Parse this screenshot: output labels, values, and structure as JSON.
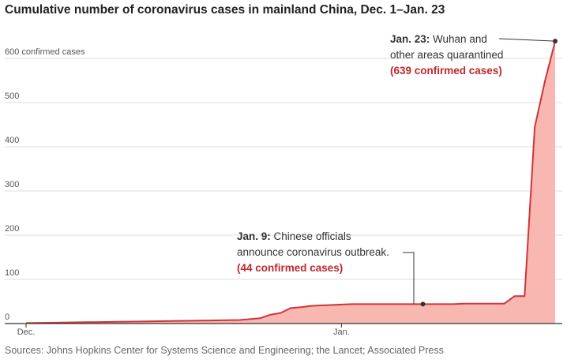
{
  "title": "Cumulative number of coronavirus cases in mainland China, Dec. 1–Jan. 23",
  "source": "Sources: Johns Hopkins Center for Systems Science and Engineering; the Lancet; Associated Press",
  "colors": {
    "line": "#d0343a",
    "area": "#f8b7b0",
    "grid": "#dddddd",
    "annotation_red": "#c0272d"
  },
  "chart_data": {
    "type": "area",
    "title": "Cumulative number of coronavirus cases in mainland China, Dec. 1–Jan. 23",
    "ylabel": "",
    "ylim": [
      0,
      639
    ],
    "y_ticks": [
      {
        "value": 0,
        "label": "0"
      },
      {
        "value": 100,
        "label": "100"
      },
      {
        "value": 200,
        "label": "200"
      },
      {
        "value": 300,
        "label": "300"
      },
      {
        "value": 400,
        "label": "400"
      },
      {
        "value": 500,
        "label": "500"
      },
      {
        "value": 600,
        "label": "600 confirmed cases"
      }
    ],
    "x_ticks": [
      {
        "day": 0,
        "label": "Dec."
      },
      {
        "day": 31,
        "label": "Jan."
      }
    ],
    "grid": true,
    "series": [
      {
        "values": [
          [
            0,
            1
          ],
          [
            3,
            2
          ],
          [
            6,
            3
          ],
          [
            9,
            4
          ],
          [
            12,
            5
          ],
          [
            15,
            6
          ],
          [
            18,
            7
          ],
          [
            21,
            8
          ],
          [
            23,
            12
          ],
          [
            24,
            20
          ],
          [
            25,
            24
          ],
          [
            26,
            35
          ],
          [
            27,
            37
          ],
          [
            28,
            40
          ],
          [
            29,
            41
          ],
          [
            30,
            42
          ],
          [
            31,
            43
          ],
          [
            32,
            44
          ],
          [
            33,
            44
          ],
          [
            34,
            44
          ],
          [
            35,
            44
          ],
          [
            36,
            44
          ],
          [
            37,
            44
          ],
          [
            38,
            44
          ],
          [
            39,
            44
          ],
          [
            40,
            44
          ],
          [
            41,
            44
          ],
          [
            42,
            44
          ],
          [
            43,
            45
          ],
          [
            44,
            45
          ],
          [
            45,
            45
          ],
          [
            46,
            45
          ],
          [
            47,
            45
          ],
          [
            48,
            62
          ],
          [
            49,
            62
          ],
          [
            50,
            445
          ],
          [
            51,
            549
          ],
          [
            52,
            639
          ]
        ]
      }
    ],
    "annotations": [
      {
        "day": 39,
        "value": 44,
        "lead": "Jan. 9:",
        "lines": [
          "Chinese officials",
          "announce coronavirus outbreak."
        ],
        "highlight": "(44 confirmed cases)"
      },
      {
        "day": 52,
        "value": 639,
        "lead": "Jan. 23:",
        "lines": [
          "Wuhan and",
          "other areas quarantined"
        ],
        "highlight": "(639 confirmed cases)"
      }
    ]
  }
}
